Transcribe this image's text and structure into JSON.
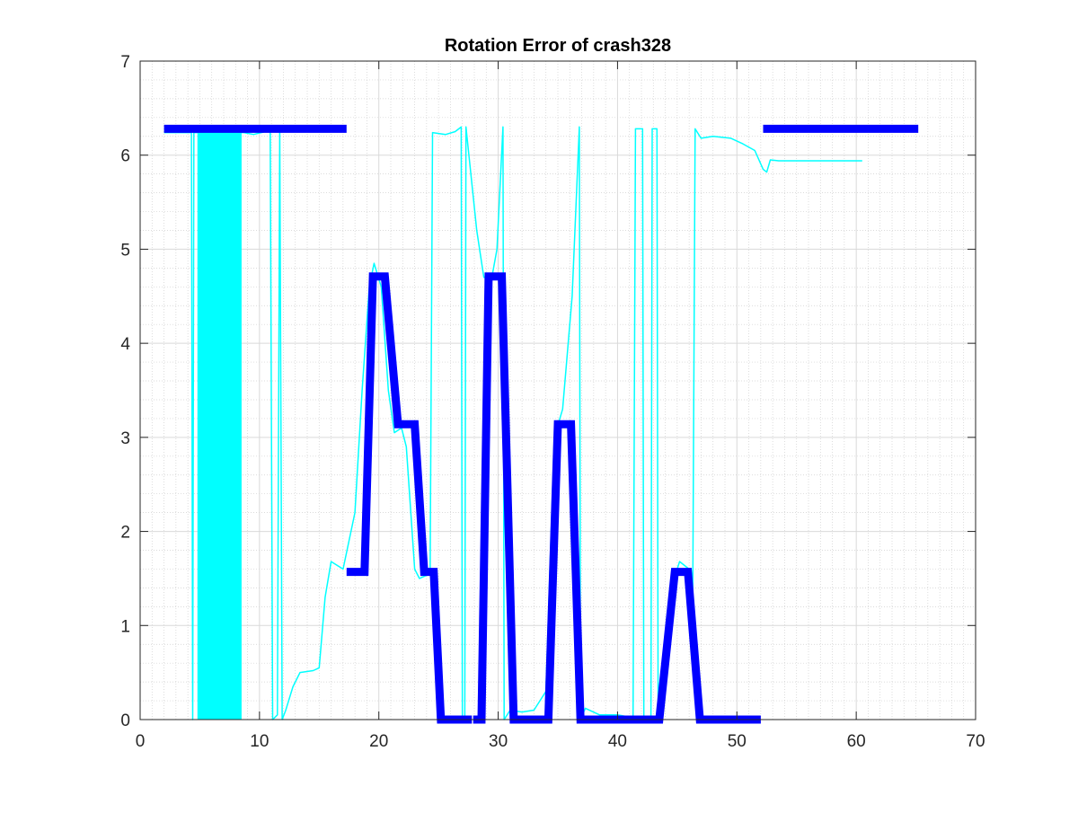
{
  "chart_data": {
    "type": "line",
    "title": "Rotation Error of crash328",
    "xlabel": "",
    "ylabel": "",
    "xlim": [
      0,
      70
    ],
    "ylim": [
      0,
      7
    ],
    "xticks": [
      0,
      10,
      20,
      30,
      40,
      50,
      60,
      70
    ],
    "yticks": [
      0,
      1,
      2,
      3,
      4,
      5,
      6,
      7
    ],
    "grid": true,
    "minor_grid": true,
    "legend": "none",
    "colors": {
      "thick": "#0000ff",
      "thin": "#00ffff",
      "axis": "#262626"
    },
    "series": [
      {
        "style": "thick",
        "segments": [
          [
            [
              2.0,
              6.28
            ],
            [
              17.3,
              6.28
            ]
          ],
          [
            [
              17.3,
              1.57
            ],
            [
              18.8,
              1.57
            ],
            [
              19.5,
              4.71
            ],
            [
              20.5,
              4.71
            ],
            [
              21.6,
              3.14
            ],
            [
              23.0,
              3.14
            ],
            [
              23.8,
              1.57
            ],
            [
              24.6,
              1.57
            ],
            [
              25.2,
              0.0
            ],
            [
              27.8,
              0.0
            ]
          ],
          [
            [
              27.9,
              0.0
            ],
            [
              28.6,
              0.0
            ],
            [
              29.2,
              4.71
            ],
            [
              30.3,
              4.71
            ],
            [
              31.3,
              0.0
            ],
            [
              34.2,
              0.0
            ],
            [
              35.0,
              3.14
            ],
            [
              36.1,
              3.14
            ],
            [
              36.9,
              0.0
            ],
            [
              43.5,
              0.0
            ],
            [
              44.8,
              1.57
            ],
            [
              45.9,
              1.57
            ],
            [
              46.9,
              0.0
            ],
            [
              52.0,
              0.0
            ]
          ],
          [
            [
              52.2,
              6.28
            ],
            [
              65.2,
              6.28
            ]
          ]
        ]
      },
      {
        "style": "thin",
        "points": [
          [
            2.0,
            6.24
          ],
          [
            4.3,
            6.24
          ],
          [
            4.4,
            0.0
          ],
          [
            4.5,
            6.24
          ],
          [
            8.7,
            6.24
          ],
          [
            9.5,
            6.22
          ],
          [
            10.5,
            6.25
          ],
          [
            10.9,
            6.28
          ],
          [
            11.1,
            0.0
          ],
          [
            11.5,
            0.05
          ],
          [
            11.7,
            6.28
          ],
          [
            11.9,
            0.0
          ],
          [
            12.2,
            0.1
          ],
          [
            12.8,
            0.35
          ],
          [
            13.4,
            0.5
          ],
          [
            14.5,
            0.52
          ],
          [
            15.0,
            0.55
          ],
          [
            15.5,
            1.3
          ],
          [
            16.0,
            1.68
          ],
          [
            17.0,
            1.6
          ],
          [
            18.0,
            2.2
          ],
          [
            18.6,
            3.5
          ],
          [
            19.2,
            4.6
          ],
          [
            19.6,
            4.85
          ],
          [
            20.2,
            4.6
          ],
          [
            20.8,
            3.5
          ],
          [
            21.3,
            3.05
          ],
          [
            21.9,
            3.1
          ],
          [
            22.3,
            2.9
          ],
          [
            23.0,
            1.6
          ],
          [
            23.4,
            1.5
          ],
          [
            24.3,
            1.55
          ],
          [
            24.5,
            6.24
          ],
          [
            25.6,
            6.22
          ],
          [
            26.4,
            6.25
          ],
          [
            26.9,
            6.3
          ],
          [
            27.0,
            0.0
          ],
          [
            27.2,
            0.0
          ],
          [
            27.3,
            6.3
          ],
          [
            28.2,
            5.2
          ],
          [
            28.8,
            4.7
          ],
          [
            29.5,
            4.72
          ],
          [
            29.9,
            5.0
          ],
          [
            30.4,
            6.3
          ],
          [
            30.5,
            0.0
          ],
          [
            31.0,
            0.1
          ],
          [
            32.0,
            0.08
          ],
          [
            33.0,
            0.1
          ],
          [
            34.0,
            0.3
          ],
          [
            34.7,
            3.0
          ],
          [
            35.4,
            3.3
          ],
          [
            36.2,
            4.5
          ],
          [
            36.8,
            6.3
          ],
          [
            36.9,
            0.0
          ],
          [
            37.3,
            0.12
          ],
          [
            38.5,
            0.05
          ],
          [
            40.0,
            0.05
          ],
          [
            41.3,
            0.02
          ],
          [
            41.5,
            6.28
          ],
          [
            42.1,
            6.28
          ],
          [
            42.2,
            0.0
          ],
          [
            42.8,
            0.0
          ],
          [
            42.9,
            6.28
          ],
          [
            43.3,
            6.28
          ],
          [
            43.4,
            0.0
          ],
          [
            44.0,
            0.3
          ],
          [
            44.5,
            1.4
          ],
          [
            45.2,
            1.68
          ],
          [
            46.0,
            1.6
          ],
          [
            46.3,
            1.2
          ],
          [
            46.5,
            6.28
          ],
          [
            47.0,
            6.18
          ],
          [
            48.0,
            6.2
          ],
          [
            49.5,
            6.18
          ],
          [
            50.5,
            6.12
          ],
          [
            51.5,
            6.05
          ],
          [
            52.2,
            5.85
          ],
          [
            52.5,
            5.82
          ],
          [
            52.8,
            5.95
          ],
          [
            53.5,
            5.94
          ],
          [
            60.5,
            5.94
          ]
        ],
        "filled_band": [
          4.8,
          8.5
        ]
      }
    ]
  }
}
